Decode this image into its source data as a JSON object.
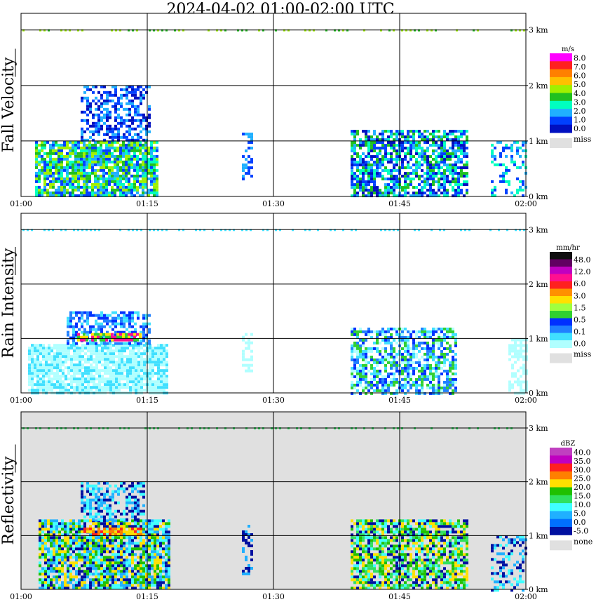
{
  "title": "2024-04-02   01:00-02:00 UTC",
  "chart_data": [
    {
      "type": "heatmap",
      "ylabel": "Fall Velocity",
      "x_ticks": [
        "01:00",
        "01:15",
        "01:30",
        "01:45",
        "02:00"
      ],
      "y_ticks": [
        "0 km",
        "1 km",
        "2 km",
        "3 km"
      ],
      "ylim": [
        0,
        3.3
      ],
      "grid": true,
      "colorbar": {
        "unit": "m/s",
        "labels": [
          "8.0",
          "7.0",
          "6.0",
          "5.0",
          "4.0",
          "3.0",
          "2.0",
          "1.0",
          "0.0"
        ],
        "colors": [
          "#ff00ff",
          "#ff2020",
          "#ff8000",
          "#ffc000",
          "#a0f000",
          "#20c020",
          "#00ffc0",
          "#20b0ff",
          "#0040ff",
          "#0010c0"
        ],
        "missing_label": "miss",
        "missing_color": "#e0e0e0"
      }
    },
    {
      "type": "heatmap",
      "ylabel": "Rain Intensity",
      "x_ticks": [
        "01:00",
        "01:15",
        "01:30",
        "01:45",
        "02:00"
      ],
      "y_ticks": [
        "0 km",
        "1 km",
        "2 km",
        "3 km"
      ],
      "ylim": [
        0,
        3.3
      ],
      "grid": true,
      "colorbar": {
        "unit": "mm/hr",
        "labels": [
          "48.0",
          "12.0",
          "6.0",
          "3.0",
          "1.5",
          "0.5",
          "0.1",
          "0.0"
        ],
        "colors": [
          "#101010",
          "#600060",
          "#c000c0",
          "#ff1090",
          "#ff2020",
          "#ff9000",
          "#ffe000",
          "#a0ff40",
          "#30d030",
          "#0030ff",
          "#2080ff",
          "#40e0ff",
          "#b0ffff"
        ],
        "missing_label": "miss",
        "missing_color": "#e0e0e0"
      }
    },
    {
      "type": "heatmap",
      "ylabel": "Reflectivity",
      "x_ticks": [
        "01:00",
        "01:15",
        "01:30",
        "01:45",
        "02:00"
      ],
      "y_ticks": [
        "0 km",
        "1 km",
        "2 km",
        "3 km"
      ],
      "ylim": [
        0,
        3.3
      ],
      "grid": true,
      "colorbar": {
        "unit": "dBZ",
        "labels": [
          "40.0",
          "35.0",
          "30.0",
          "25.0",
          "20.0",
          "15.0",
          "10.0",
          "5.0",
          "0.0",
          "-5.0"
        ],
        "colors": [
          "#c040c0",
          "#c000c0",
          "#ff2020",
          "#ff8000",
          "#ffe000",
          "#20c000",
          "#30e060",
          "#40ffff",
          "#20b0ff",
          "#0070ff",
          "#0010a0"
        ],
        "missing_label": "none",
        "missing_color": "#e0e0e0"
      }
    }
  ]
}
